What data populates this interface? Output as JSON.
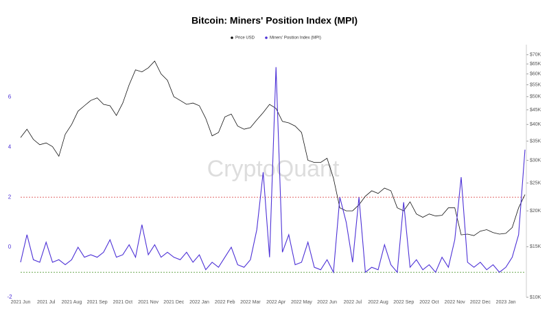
{
  "chart_data": {
    "type": "line",
    "title": "Bitcoin: Miners' Position Index (MPI)",
    "watermark": "CryptoQuant",
    "categories": [
      "2021 Jun",
      null,
      null,
      null,
      "2021 Jul",
      null,
      null,
      null,
      "2021 Aug",
      null,
      null,
      null,
      "2021 Sep",
      null,
      null,
      null,
      "2021 Oct",
      null,
      null,
      null,
      "2021 Nov",
      null,
      null,
      null,
      "2021 Dec",
      null,
      null,
      null,
      "2022 Jan",
      null,
      null,
      null,
      "2022 Feb",
      null,
      null,
      null,
      "2022 Mar",
      null,
      null,
      null,
      "2022 Apr",
      null,
      null,
      null,
      "2022 May",
      null,
      null,
      null,
      "2022 Jun",
      null,
      null,
      null,
      "2022 Jul",
      null,
      null,
      null,
      "2022 Aug",
      null,
      null,
      null,
      "2022 Sep",
      null,
      null,
      null,
      "2022 Oct",
      null,
      null,
      null,
      "2022 Nov",
      null,
      null,
      null,
      "2022 Dec",
      null,
      null,
      null,
      "2023 Jan",
      null,
      null,
      null
    ],
    "series": [
      {
        "name": "Price USD",
        "color": "#111111",
        "axis": "y2",
        "values": [
          36000,
          38500,
          35500,
          34000,
          34500,
          33500,
          31000,
          37000,
          40000,
          44500,
          46500,
          48500,
          49500,
          47000,
          46500,
          43000,
          47500,
          55000,
          62000,
          61000,
          63000,
          66500,
          60000,
          57000,
          50000,
          48500,
          47000,
          47500,
          46500,
          42000,
          36500,
          37500,
          42500,
          43500,
          39500,
          38500,
          39000,
          41500,
          44000,
          47000,
          45500,
          41000,
          40500,
          39500,
          37500,
          30000,
          29500,
          29500,
          30500,
          26000,
          20500,
          20000,
          20000,
          21000,
          22500,
          23500,
          23000,
          24000,
          23500,
          20500,
          20000,
          21500,
          19500,
          19000,
          19500,
          19200,
          19300,
          20500,
          20500,
          16500,
          16600,
          16400,
          17000,
          17200,
          16800,
          16600,
          16700,
          17500,
          20500,
          22800
        ]
      },
      {
        "name": "Miners' Position Index (MPI)",
        "color": "#4b2fd6",
        "values": [
          -0.6,
          0.5,
          -0.5,
          -0.6,
          0.2,
          -0.6,
          -0.5,
          -0.7,
          -0.5,
          0.0,
          -0.4,
          -0.3,
          -0.4,
          -0.2,
          0.3,
          -0.4,
          -0.3,
          0.1,
          -0.4,
          0.9,
          -0.3,
          0.1,
          -0.4,
          -0.2,
          -0.4,
          -0.5,
          -0.2,
          -0.6,
          -0.3,
          -0.9,
          -0.6,
          -0.8,
          -0.4,
          0.0,
          -0.7,
          -0.8,
          -0.5,
          0.7,
          3.0,
          -0.4,
          7.2,
          -0.2,
          0.5,
          -0.7,
          -0.6,
          0.2,
          -0.8,
          -0.9,
          -0.5,
          -1.0,
          2.0,
          1.0,
          -0.6,
          2.0,
          -1.0,
          -0.8,
          -0.9,
          0.1,
          -0.7,
          -1.0,
          1.8,
          -0.8,
          -0.5,
          -0.9,
          -0.7,
          -1.0,
          -0.4,
          -0.8,
          0.3,
          2.8,
          -0.6,
          -0.8,
          -0.6,
          -0.9,
          -0.7,
          -1.0,
          -0.8,
          -0.4,
          0.5,
          3.9
        ]
      }
    ],
    "ylim": [
      -2,
      8.1
    ],
    "yticks": [
      -2,
      0,
      2,
      4,
      6
    ],
    "ytick_color": "#4b2fd6",
    "y2lim": [
      10000,
      75900
    ],
    "y2log": true,
    "y2ticks": [
      {
        "value": 10000,
        "label": "$10K"
      },
      {
        "value": 15000,
        "label": "$15K"
      },
      {
        "value": 20000,
        "label": "$20K"
      },
      {
        "value": 25000,
        "label": "$25K"
      },
      {
        "value": 30000,
        "label": "$30K"
      },
      {
        "value": 35000,
        "label": "$35K"
      },
      {
        "value": 40000,
        "label": "$40K"
      },
      {
        "value": 45000,
        "label": "$45K"
      },
      {
        "value": 50000,
        "label": "$50K"
      },
      {
        "value": 55000,
        "label": "$55K"
      },
      {
        "value": 60000,
        "label": "$60K"
      },
      {
        "value": 65000,
        "label": "$65K"
      },
      {
        "value": 70000,
        "label": "$70K"
      }
    ],
    "reference_lines": [
      {
        "value": 2,
        "color": "#e06666"
      },
      {
        "value": -1,
        "color": "#6aa84f"
      }
    ],
    "legend": "top"
  }
}
